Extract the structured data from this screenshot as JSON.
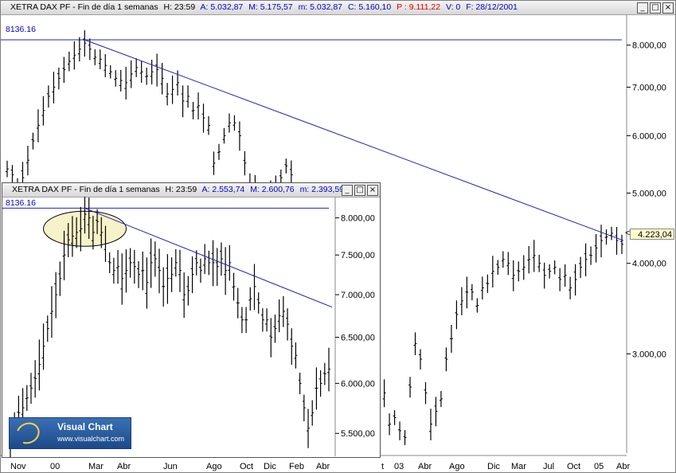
{
  "main_window": {
    "title_name": "XETRA DAX PF - Fin de día 1 semanas",
    "H": "H: 23:59",
    "A": "A: 5.032,87",
    "M": "M: 5.175,57",
    "m": "m: 5.032,87",
    "C": "C: 5.160,10",
    "P": "P : 9.111,22",
    "V": "V: 0",
    "F": "F: 28/12/2001",
    "ref_line_label": "8136.16",
    "last_price_label": "4.223,04",
    "price_marker": "<"
  },
  "inset_window": {
    "title_name": "XETRA DAX PF - Fin de día 1 semanas",
    "H": "H: 23:59",
    "A": "A: 2.553,74",
    "M": "M: 2.600,76",
    "m": "m: 2.393,59",
    "ref_line_label": "8136.16"
  },
  "window_buttons": {
    "minimize": "_",
    "restore": "□",
    "close": "×"
  },
  "logo": {
    "name": "Visual Chart",
    "url": "www.visualchart.com"
  },
  "colors": {
    "axis_blue": "#0000c8",
    "trend_blue": "#2020c0",
    "bar": "#000000",
    "highlight": "#f5f0c0",
    "price_red": "#e00000"
  },
  "chart_data": [
    {
      "type": "bar",
      "title": "XETRA DAX PF - Fin de día 1 semanas",
      "scale": "log",
      "ylim": [
        2200,
        8800
      ],
      "y_ticks": [
        3000,
        4000,
        5000,
        6000,
        7000,
        8000
      ],
      "y_tick_labels": [
        "3.000,00",
        "4.000,00",
        "5.000,00",
        "6.000,00",
        "7.000,00",
        "8.000,00"
      ],
      "x_tick_labels": [
        "Nov",
        "00",
        "Mar",
        "Abr",
        "Jun",
        "Ago",
        "Oct",
        "Dic",
        "Feb",
        "Abr",
        "t",
        "03",
        "Abr",
        "Ago",
        "Dic",
        "Mar",
        "Jul",
        "Oct",
        "05",
        "Abr"
      ],
      "reference_line": 8136.16,
      "last_price": 4223.04,
      "trendline": {
        "from": 8136.16,
        "to": 4300
      },
      "series": [
        {
          "values": [
            5400,
            5300,
            5050,
            5250,
            5550,
            5900,
            6200,
            6500,
            6800,
            7000,
            7200,
            7400,
            7600,
            7750,
            7900,
            8050,
            7900,
            7700,
            7650,
            7500,
            7350,
            7200,
            7150,
            7100,
            7300,
            7450,
            7350,
            7250,
            7350,
            7400,
            7200,
            6850,
            6950,
            7100,
            6700,
            6800,
            6500,
            6600,
            6350,
            6200,
            5500,
            5700,
            6000,
            6250,
            6250,
            6000,
            5500,
            5150,
            5050,
            4900,
            4850,
            5050,
            5150,
            5250,
            5450,
            5300,
            5000,
            4600,
            4300,
            4000,
            3800,
            3600,
            3500,
            3350,
            3450,
            3600,
            3550,
            3400,
            3550,
            3400,
            3300,
            3100,
            2800,
            2650,
            2400,
            2450,
            2350,
            2300,
            2700,
            3100,
            2950,
            2650,
            2400,
            2500,
            2600,
            2950,
            3150,
            3400,
            3550,
            3650,
            3650,
            3500,
            3700,
            3750,
            3900,
            3950,
            4050,
            4000,
            3850,
            3900,
            3950,
            4050,
            4100,
            4000,
            3850,
            3900,
            3950,
            3800,
            3850,
            3700,
            3800,
            3950,
            4050,
            4100,
            4200,
            4300,
            4350,
            4400,
            4300,
            4250
          ]
        }
      ]
    },
    {
      "type": "bar",
      "title": "XETRA DAX PF - Fin de día 1 semanas",
      "scale": "log",
      "ylim": [
        5300,
        8300
      ],
      "y_ticks": [
        5500,
        6000,
        6500,
        7000,
        7500,
        8000
      ],
      "y_tick_labels": [
        "5.500,00",
        "6.000,00",
        "6.500,00",
        "7.000,00",
        "7.500,00",
        "8.000,00"
      ],
      "reference_line": 8136.16,
      "trendline": {
        "from": 8136.16,
        "to": 6850
      },
      "series": [
        {
          "values": [
            5450,
            5550,
            5700,
            5750,
            5850,
            5950,
            6050,
            6200,
            6400,
            6600,
            6800,
            7000,
            7200,
            7500,
            7700,
            7750,
            7800,
            7850,
            8050,
            8000,
            7800,
            7950,
            7800,
            7650,
            7400,
            7300,
            7350,
            7200,
            7300,
            7400,
            7350,
            7250,
            7300,
            7150,
            7400,
            7450,
            7300,
            7100,
            7200,
            7250,
            7400,
            7300,
            7000,
            7050,
            7250,
            7400,
            7300,
            7450,
            7400,
            7400,
            7350,
            7450,
            7300,
            7400,
            7100,
            6900,
            6700,
            6700,
            6950,
            7100,
            6900,
            6700,
            6700,
            6500,
            6600,
            6750,
            6800,
            6650,
            6400,
            6300,
            6000,
            5750,
            5550,
            5700,
            5950,
            6000,
            6100,
            6150
          ]
        }
      ]
    }
  ]
}
